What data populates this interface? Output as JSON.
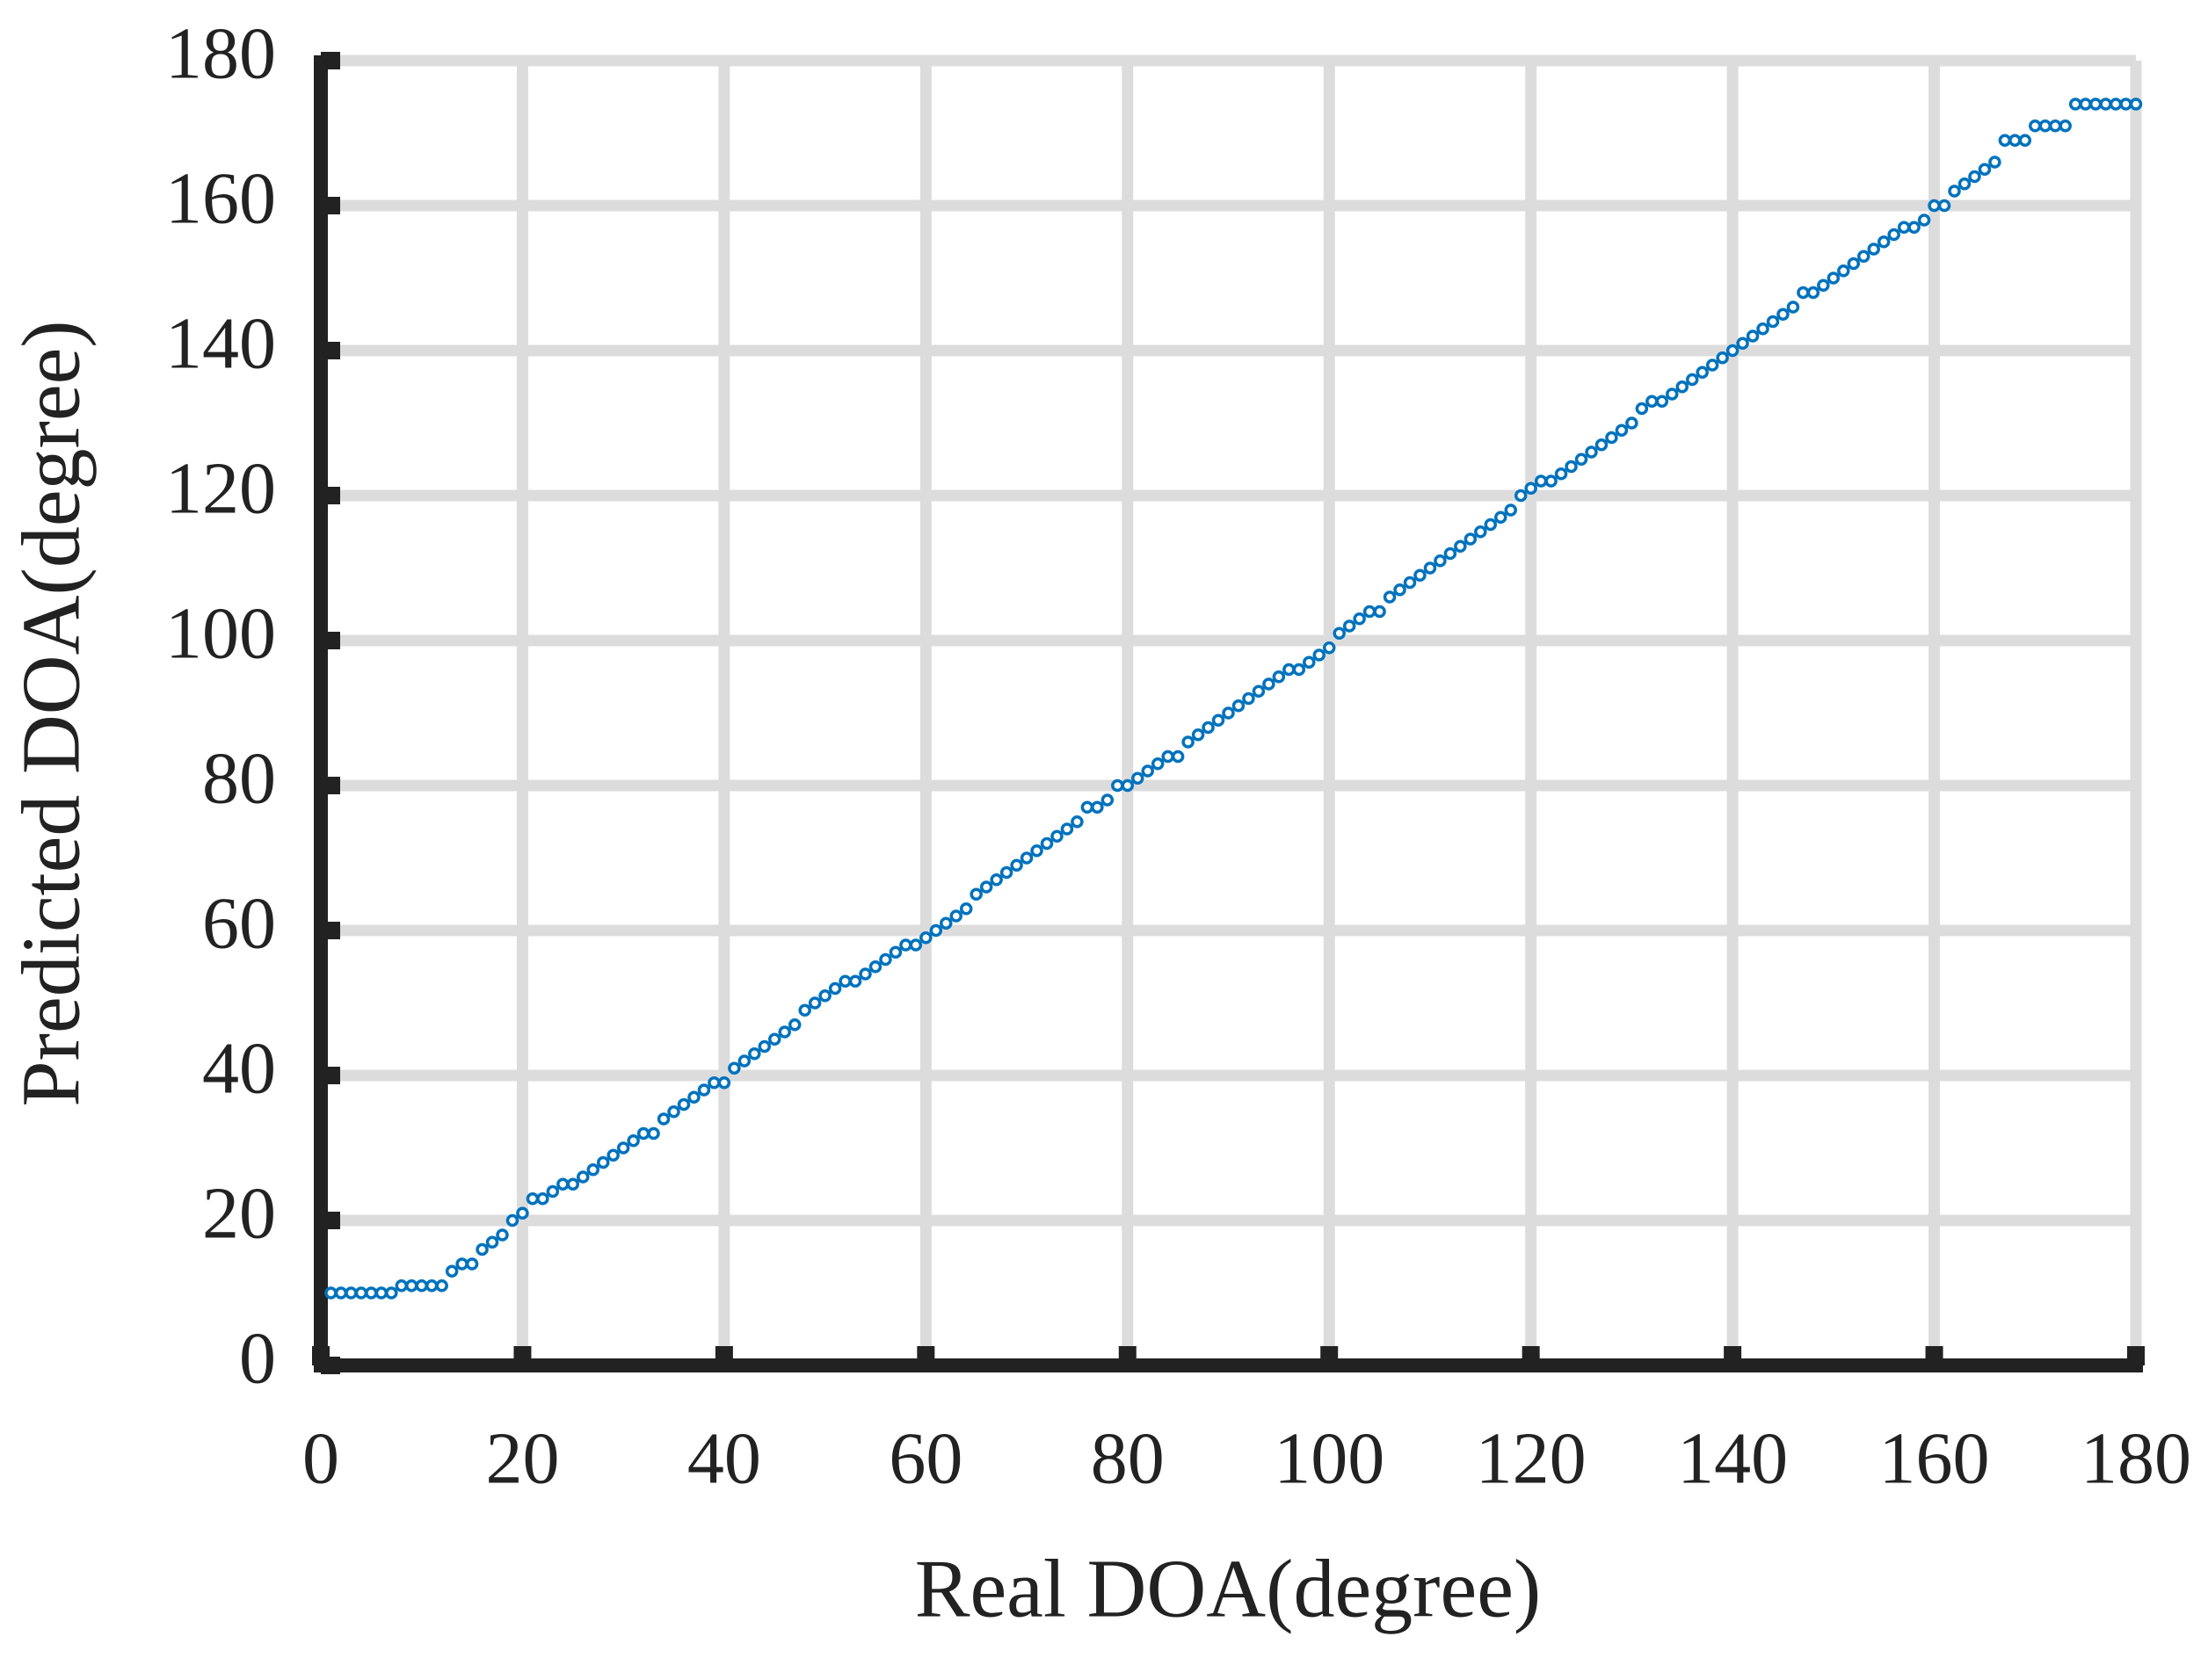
{
  "chart_data": {
    "type": "scatter",
    "x_label": "Real DOA(degree)",
    "y_label": "Predicted DOA(degree)",
    "xlim": [
      0,
      180
    ],
    "ylim": [
      0,
      180
    ],
    "xticks": [
      0,
      20,
      40,
      60,
      80,
      100,
      120,
      140,
      160,
      180
    ],
    "yticks": [
      0,
      20,
      40,
      60,
      80,
      100,
      120,
      140,
      160,
      180
    ],
    "grid": true,
    "color": "#0072bd",
    "x": [
      1,
      2,
      3,
      4,
      5,
      6,
      7,
      8,
      9,
      10,
      11,
      12,
      13,
      14,
      15,
      16,
      17,
      18,
      19,
      20,
      21,
      22,
      23,
      24,
      25,
      26,
      27,
      28,
      29,
      30,
      31,
      32,
      33,
      34,
      35,
      36,
      37,
      38,
      39,
      40,
      41,
      42,
      43,
      44,
      45,
      46,
      47,
      48,
      49,
      50,
      51,
      52,
      53,
      54,
      55,
      56,
      57,
      58,
      59,
      60,
      61,
      62,
      63,
      64,
      65,
      66,
      67,
      68,
      69,
      70,
      71,
      72,
      73,
      74,
      75,
      76,
      77,
      78,
      79,
      80,
      81,
      82,
      83,
      84,
      85,
      86,
      87,
      88,
      89,
      90,
      91,
      92,
      93,
      94,
      95,
      96,
      97,
      98,
      99,
      100,
      101,
      102,
      103,
      104,
      105,
      106,
      107,
      108,
      109,
      110,
      111,
      112,
      113,
      114,
      115,
      116,
      117,
      118,
      119,
      120,
      121,
      122,
      123,
      124,
      125,
      126,
      127,
      128,
      129,
      130,
      131,
      132,
      133,
      134,
      135,
      136,
      137,
      138,
      139,
      140,
      141,
      142,
      143,
      144,
      145,
      146,
      147,
      148,
      149,
      150,
      151,
      152,
      153,
      154,
      155,
      156,
      157,
      158,
      159,
      160,
      161,
      162,
      163,
      164,
      165,
      166,
      167,
      168,
      169,
      170,
      171,
      172,
      173,
      174,
      175,
      176,
      177,
      178,
      179,
      180
    ],
    "values": [
      10,
      10,
      10,
      10,
      10,
      10,
      10,
      11,
      11,
      11,
      11,
      11,
      13,
      14,
      14,
      16,
      17,
      18,
      20,
      21,
      23,
      23,
      24,
      25,
      25,
      26,
      27,
      28,
      29,
      30,
      31,
      32,
      32,
      34,
      35,
      36,
      37,
      38,
      39,
      39,
      41,
      42,
      43,
      44,
      45,
      46,
      47,
      49,
      50,
      51,
      52,
      53,
      53,
      54,
      55,
      56,
      57,
      58,
      58,
      59,
      60,
      61,
      62,
      63,
      65,
      66,
      67,
      68,
      69,
      70,
      71,
      72,
      73,
      74,
      75,
      77,
      77,
      78,
      80,
      80,
      81,
      82,
      83,
      84,
      84,
      86,
      87,
      88,
      89,
      90,
      91,
      92,
      93,
      94,
      95,
      96,
      96,
      97,
      98,
      99,
      101,
      102,
      103,
      104,
      104,
      106,
      107,
      108,
      109,
      110,
      111,
      112,
      113,
      114,
      115,
      116,
      117,
      118,
      120,
      121,
      122,
      122,
      123,
      124,
      125,
      126,
      127,
      128,
      129,
      130,
      132,
      133,
      133,
      134,
      135,
      136,
      137,
      138,
      139,
      140,
      141,
      142,
      143,
      144,
      145,
      146,
      148,
      148,
      149,
      150,
      151,
      152,
      153,
      154,
      155,
      156,
      157,
      157,
      158,
      160,
      160,
      162,
      163,
      164,
      165,
      166,
      169,
      169,
      169,
      171,
      171,
      171,
      171,
      174,
      174,
      174,
      174,
      174,
      174,
      174
    ]
  }
}
